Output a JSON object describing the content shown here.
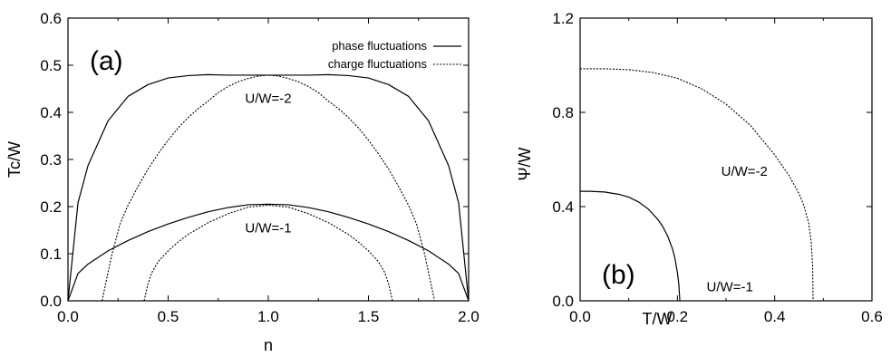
{
  "chart_data": [
    {
      "id": "a",
      "type": "line",
      "panel_label": "(a)",
      "xlabel": "n",
      "ylabel": "Tc/W",
      "xlim": [
        0.0,
        2.0
      ],
      "ylim": [
        0.0,
        0.6
      ],
      "xticks": [
        "0.0",
        "0.5",
        "1.0",
        "1.5",
        "2.0"
      ],
      "yticks": [
        "0.0",
        "0.1",
        "0.2",
        "0.3",
        "0.4",
        "0.5",
        "0.6"
      ],
      "grid": false,
      "legend_position": "top-right",
      "legend": [
        {
          "label": "phase fluctuations",
          "style": "solid"
        },
        {
          "label": "charge fluctuations",
          "style": "dotted"
        }
      ],
      "annotations": [
        {
          "text": "U/W=-2",
          "x": 1.0,
          "y": 0.43
        },
        {
          "text": "U/W=-1",
          "x": 1.0,
          "y": 0.155
        }
      ],
      "series": [
        {
          "curve": "phase",
          "style": "solid",
          "x": [
            0.0,
            0.05,
            0.1,
            0.2,
            0.3,
            0.4,
            0.5,
            0.6,
            0.7,
            0.8,
            0.9,
            1.0,
            1.1,
            1.2,
            1.3,
            1.4,
            1.5,
            1.6,
            1.7,
            1.8,
            1.9,
            1.95,
            2.0
          ],
          "y": [
            0.0,
            0.208,
            0.287,
            0.382,
            0.434,
            0.459,
            0.473,
            0.478,
            0.48,
            0.479,
            0.479,
            0.479,
            0.479,
            0.479,
            0.48,
            0.478,
            0.473,
            0.459,
            0.434,
            0.382,
            0.287,
            0.208,
            0.0
          ]
        },
        {
          "curve": "charge",
          "style": "dotted",
          "x": [
            0.17,
            0.19,
            0.22,
            0.26,
            0.3,
            0.35,
            0.4,
            0.45,
            0.5,
            0.55,
            0.6,
            0.65,
            0.7,
            0.75,
            0.8,
            0.85,
            0.9,
            0.95,
            1.0,
            1.05,
            1.1,
            1.15,
            1.2,
            1.25,
            1.3,
            1.35,
            1.4,
            1.45,
            1.5,
            1.55,
            1.6,
            1.65,
            1.7,
            1.74,
            1.78,
            1.81,
            1.83
          ],
          "y": [
            0.0,
            0.04,
            0.1,
            0.163,
            0.203,
            0.243,
            0.28,
            0.312,
            0.341,
            0.367,
            0.389,
            0.408,
            0.424,
            0.442,
            0.455,
            0.465,
            0.472,
            0.477,
            0.479,
            0.477,
            0.472,
            0.465,
            0.455,
            0.442,
            0.424,
            0.408,
            0.389,
            0.367,
            0.341,
            0.312,
            0.28,
            0.243,
            0.203,
            0.163,
            0.1,
            0.04,
            0.0
          ]
        },
        {
          "curve": "phase",
          "style": "solid",
          "x": [
            0.0,
            0.05,
            0.1,
            0.2,
            0.3,
            0.4,
            0.5,
            0.6,
            0.7,
            0.8,
            0.9,
            1.0,
            1.1,
            1.2,
            1.3,
            1.4,
            1.5,
            1.6,
            1.7,
            1.8,
            1.9,
            1.95,
            2.0
          ],
          "y": [
            0.0,
            0.058,
            0.078,
            0.106,
            0.128,
            0.147,
            0.163,
            0.177,
            0.189,
            0.198,
            0.204,
            0.205,
            0.204,
            0.198,
            0.189,
            0.177,
            0.163,
            0.147,
            0.128,
            0.106,
            0.078,
            0.058,
            0.0
          ]
        },
        {
          "curve": "charge",
          "style": "dotted",
          "x": [
            0.38,
            0.4,
            0.42,
            0.45,
            0.5,
            0.55,
            0.6,
            0.7,
            0.8,
            0.9,
            1.0,
            1.1,
            1.2,
            1.3,
            1.4,
            1.45,
            1.5,
            1.55,
            1.58,
            1.6,
            1.62
          ],
          "y": [
            0.0,
            0.037,
            0.061,
            0.083,
            0.106,
            0.125,
            0.141,
            0.166,
            0.185,
            0.199,
            0.203,
            0.199,
            0.185,
            0.166,
            0.141,
            0.125,
            0.106,
            0.083,
            0.061,
            0.037,
            0.0
          ]
        }
      ]
    },
    {
      "id": "b",
      "type": "line",
      "panel_label": "(b)",
      "xlabel": "T/W",
      "ylabel": "Ψ/W",
      "xlim": [
        0.0,
        0.6
      ],
      "ylim": [
        0.0,
        1.2
      ],
      "xticks": [
        "0.0",
        "0.2",
        "0.4",
        "0.6"
      ],
      "yticks": [
        "0.0",
        "0.4",
        "0.8",
        "1.2"
      ],
      "grid": false,
      "annotations": [
        {
          "text": "U/W=-2",
          "x": 0.29,
          "y": 0.55
        },
        {
          "text": "U/W=-1",
          "x": 0.26,
          "y": 0.06
        }
      ],
      "series": [
        {
          "curve": "U/W=-2",
          "style": "dotted",
          "x": [
            0.0,
            0.05,
            0.1,
            0.15,
            0.2,
            0.25,
            0.3,
            0.35,
            0.4,
            0.43,
            0.45,
            0.46,
            0.47,
            0.475,
            0.478,
            0.479
          ],
          "y": [
            0.985,
            0.985,
            0.981,
            0.969,
            0.945,
            0.9,
            0.835,
            0.745,
            0.62,
            0.53,
            0.455,
            0.405,
            0.33,
            0.25,
            0.15,
            0.0
          ]
        },
        {
          "curve": "U/W=-1",
          "style": "solid",
          "x": [
            0.0,
            0.02,
            0.05,
            0.08,
            0.1,
            0.12,
            0.14,
            0.16,
            0.17,
            0.18,
            0.19,
            0.195,
            0.2,
            0.203,
            0.205
          ],
          "y": [
            0.465,
            0.465,
            0.462,
            0.452,
            0.44,
            0.42,
            0.39,
            0.345,
            0.315,
            0.275,
            0.22,
            0.18,
            0.12,
            0.07,
            0.0
          ]
        }
      ]
    }
  ]
}
